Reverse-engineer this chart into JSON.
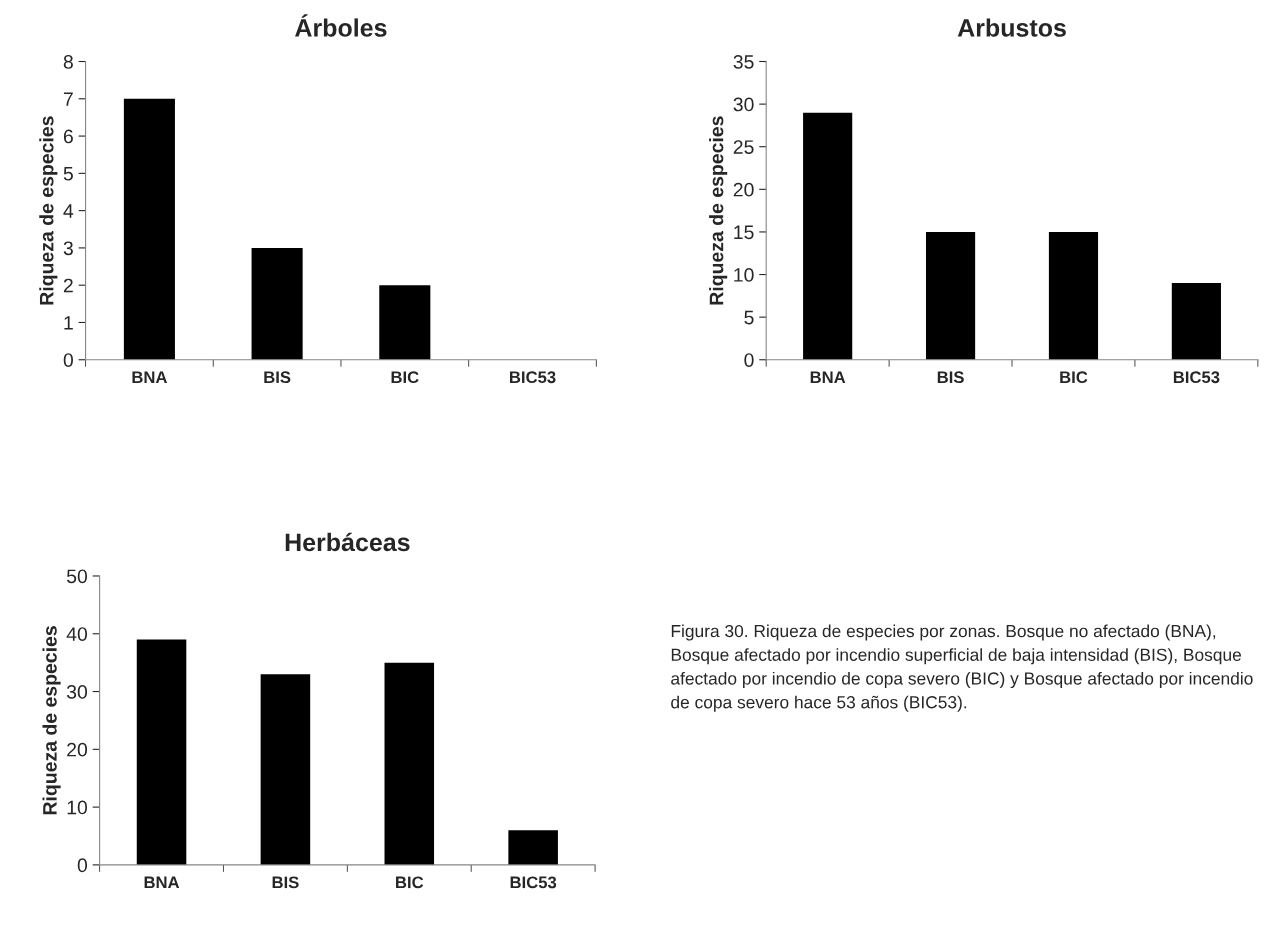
{
  "chart_data": [
    {
      "type": "bar",
      "title": "Árboles",
      "ylabel": "Riqueza de especies",
      "categories": [
        "BNA",
        "BIS",
        "BIC",
        "BIC53"
      ],
      "values": [
        7,
        3,
        2,
        0
      ],
      "color": "#000000",
      "ylim": [
        0,
        8
      ],
      "yticks": [
        0,
        1,
        2,
        3,
        4,
        5,
        6,
        7,
        8
      ],
      "grid": false,
      "legend": false
    },
    {
      "type": "bar",
      "title": "Arbustos",
      "ylabel": "Riqueza de especies",
      "categories": [
        "BNA",
        "BIS",
        "BIC",
        "BIC53"
      ],
      "values": [
        29,
        15,
        15,
        9
      ],
      "color": "#000000",
      "ylim": [
        0,
        35
      ],
      "yticks": [
        0,
        5,
        10,
        15,
        20,
        25,
        30,
        35
      ],
      "grid": false,
      "legend": false
    },
    {
      "type": "bar",
      "title": "Herbáceas",
      "ylabel": "Riqueza de especies",
      "categories": [
        "BNA",
        "BIS",
        "BIC",
        "BIC53"
      ],
      "values": [
        39,
        33,
        35,
        6
      ],
      "color": "#000000",
      "ylim": [
        0,
        50
      ],
      "yticks": [
        0,
        10,
        20,
        30,
        40,
        50
      ],
      "grid": false,
      "legend": false,
      "annotations": [
        "Figura 30. Riqueza de especies por zonas. Bosque no afectado (BNA), Bosque afectado por incendio superficial de baja intensidad (BIS), Bosque afectado por incendio de copa severo (BIC) y Bosque afectado por incendio de copa severo hace 53 años (BIC53)."
      ]
    }
  ]
}
